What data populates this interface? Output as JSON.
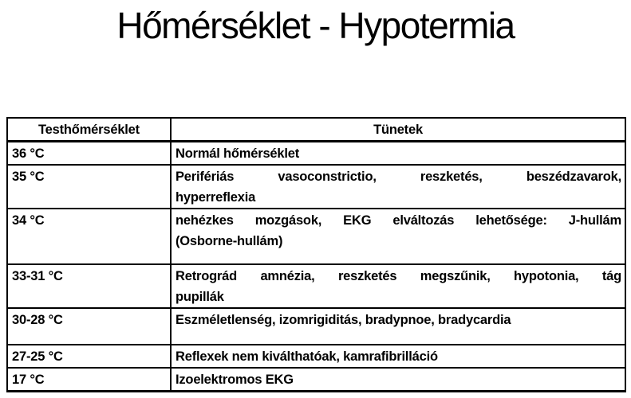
{
  "title": "Hőmérséklet - Hypotermia",
  "colors": {
    "background": "#ffffff",
    "text": "#000000",
    "border": "#000000"
  },
  "table": {
    "headers": [
      "Testhőmérséklet",
      "Tünetek"
    ],
    "rows": [
      {
        "temp": "36 °C",
        "symptoms": [
          "Normál hőmérséklet"
        ]
      },
      {
        "temp": "35 °C",
        "symptoms": [
          "Perifériás vasoconstrictio, reszketés, beszédzavarok,",
          "hyperreflexia"
        ]
      },
      {
        "temp": "34 °C",
        "symptoms": [
          "nehézkes mozgások, EKG elváltozás lehetősége: J-hullám",
          "(Osborne-hullám)"
        ]
      },
      {
        "temp": "33-31 °C",
        "symptoms": [
          "Retrográd amnézia, reszketés megszűnik, hypotonia, tág",
          "pupillák"
        ]
      },
      {
        "temp": "30-28 °C",
        "symptoms": [
          "Eszméletlenség, izomrigiditás, bradypnoe, bradycardia"
        ]
      },
      {
        "temp": "27-25 °C",
        "symptoms": [
          "Reflexek nem kiválthatóak, kamrafibrilláció"
        ]
      },
      {
        "temp": "17 °C",
        "symptoms": [
          "Izoelektromos EKG"
        ]
      }
    ]
  }
}
